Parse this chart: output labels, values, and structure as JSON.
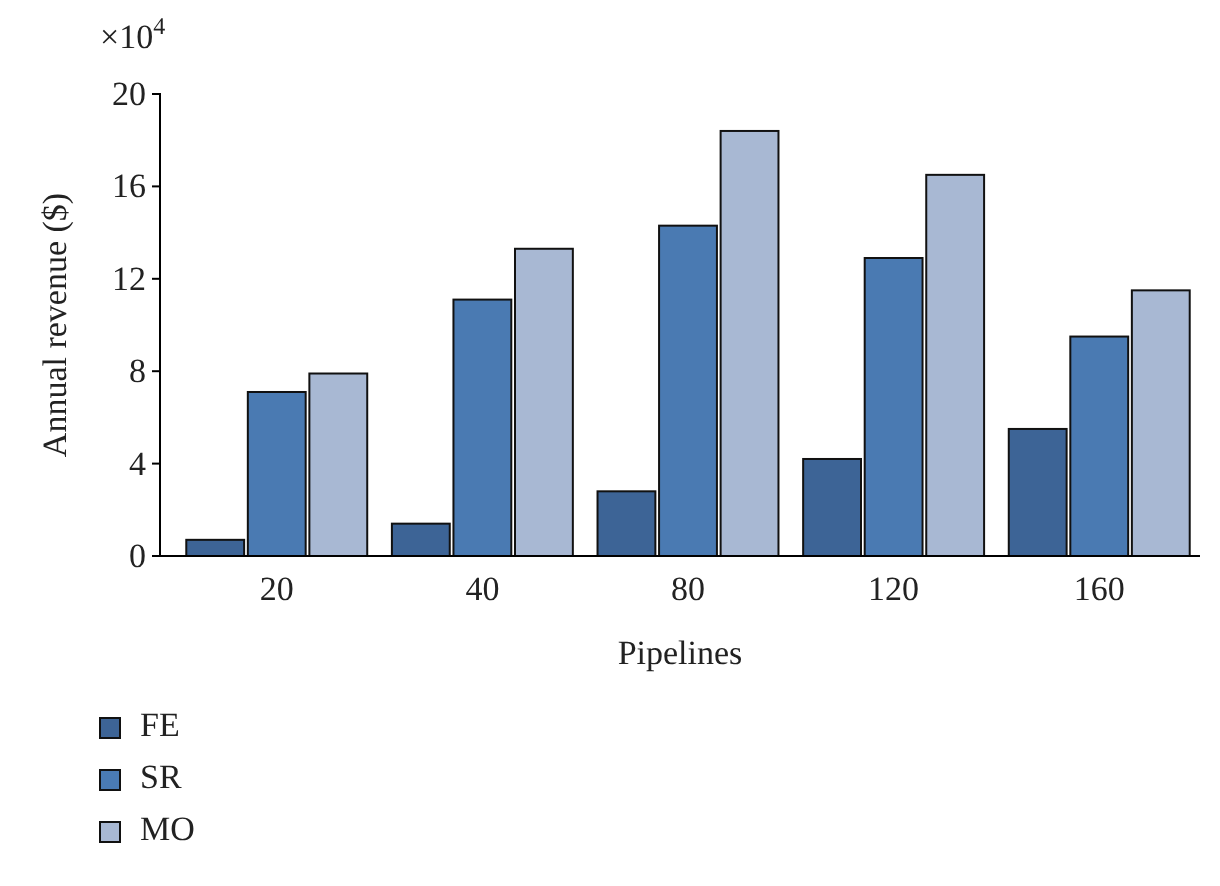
{
  "chart_data": {
    "type": "bar",
    "xlabel": "Pipelines",
    "ylabel": "Annual revenue ($)",
    "annotations": [
      "×10$^{4}$"
    ],
    "categories": [
      "20",
      "40",
      "80",
      "120",
      "160"
    ],
    "series": [
      {
        "name": "FE",
        "color": "#3d6496",
        "values": [
          0.7,
          1.4,
          2.8,
          4.2,
          5.5
        ]
      },
      {
        "name": "SR",
        "color": "#4a7ab2",
        "values": [
          7.1,
          11.1,
          14.3,
          12.9,
          9.5
        ]
      },
      {
        "name": "MO",
        "color": "#a8b8d3",
        "values": [
          7.9,
          13.3,
          18.4,
          16.5,
          11.5
        ]
      }
    ],
    "ylim": [
      0,
      20
    ],
    "yticks": [
      0,
      4,
      8,
      12,
      16,
      20
    ],
    "legend": "bottom"
  }
}
